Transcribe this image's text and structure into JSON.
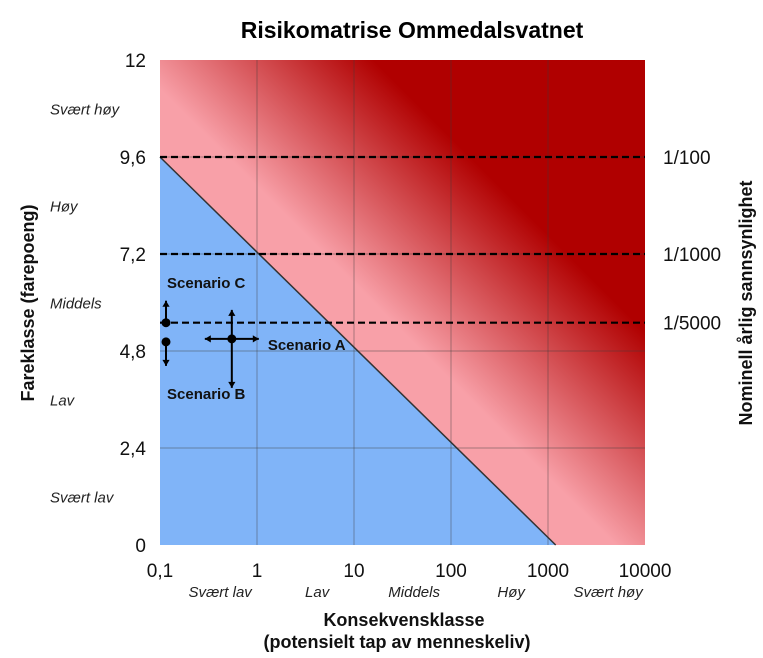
{
  "chart_data": {
    "type": "area",
    "title": "Risikomatrise Ommedalsvatnet",
    "xlabel": "Konsekvensklasse",
    "xlabel_sub": "(potensielt tap av menneskeliv)",
    "ylabel": "Fareklasse (farepoeng)",
    "y2label": "Nominell årlig sannsynlighet",
    "x_scale": "log",
    "xlim": [
      0.1,
      10000
    ],
    "ylim": [
      0,
      12
    ],
    "grid": true,
    "x_ticks": [
      "0,1",
      "1",
      "10",
      "100",
      "1000",
      "10000"
    ],
    "y_ticks": [
      "0",
      "2,4",
      "4,8",
      "7,2",
      "9,6",
      "12"
    ],
    "consequence_classes": [
      "Svært lav",
      "Lav",
      "Middels",
      "Høy",
      "Svært høy"
    ],
    "hazard_classes": [
      "Svært lav",
      "Lav",
      "Middels",
      "Høy",
      "Svært høy"
    ],
    "probability_lines": [
      {
        "label": "1/100",
        "y": 9.6
      },
      {
        "label": "1/1000",
        "y": 7.2
      },
      {
        "label": "1/5000",
        "y": 5.5
      }
    ],
    "zones": [
      {
        "name": "low",
        "color": "#80b4f8",
        "boundary": [
          [
            0.1,
            9.6
          ],
          [
            1200,
            0
          ]
        ]
      },
      {
        "name": "medium",
        "color": "#f8a0a8"
      },
      {
        "name": "high",
        "color": "#b00000"
      }
    ],
    "scenarios": [
      {
        "label": "Scenario A",
        "x": 0.55,
        "y": 5.1
      },
      {
        "label": "Scenario B",
        "x": 0.1,
        "y": 5.1
      },
      {
        "label": "Scenario C",
        "x": 0.1,
        "y": 5.5
      }
    ]
  },
  "colors": {
    "low": "#80b4f8",
    "medium": "#f8a0a8",
    "high": "#b00000",
    "line": "#000000"
  }
}
